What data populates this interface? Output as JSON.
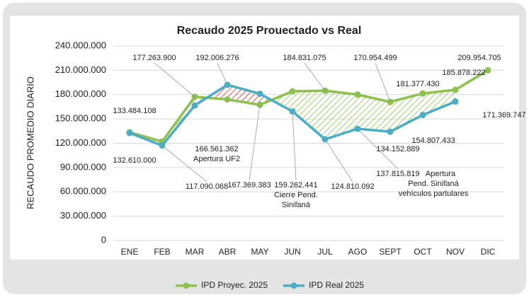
{
  "chart_data": {
    "type": "line",
    "title": "Recaudo 2025 Prouectado vs Real",
    "y_label": "RECAUDO PROMEDIO DIARIO",
    "categories": [
      "ENE",
      "FEB",
      "MAR",
      "ABR",
      "MAY",
      "JUN",
      "JUL",
      "AGO",
      "SEPT",
      "OCT",
      "NOV",
      "DIC"
    ],
    "series": [
      {
        "name": "IPD Proyec. 2025",
        "color": "#8dc04f",
        "values": [
          133484108,
          122000000,
          177263900,
          174000000,
          167369383,
          184000000,
          184831075,
          180000000,
          170954499,
          181377430,
          185878222,
          209954705
        ],
        "value_labels": [
          "133.484.108",
          null,
          "177.263.900",
          null,
          "167.369.383",
          null,
          "184.831.075",
          null,
          "170.954.499",
          "181.377.430",
          "185.878.222",
          "209.954.705"
        ]
      },
      {
        "name": "IPD Real 2025",
        "color": "#4bacc6",
        "values": [
          132610000,
          117090068,
          166561362,
          192006276,
          181000000,
          159262441,
          124810092,
          137815819,
          134152889,
          154807433,
          171369747,
          null
        ],
        "value_labels": [
          "132.610.000",
          "117.090.068",
          "166.561.362",
          "192.006.276",
          null,
          "159.262.441",
          "124.810.092",
          "137.815.819",
          "134.152.889",
          "154.807.433",
          "171.369.747",
          null
        ]
      }
    ],
    "annotations": [
      {
        "series": 1,
        "index": 2,
        "lines": [
          "Apertura UF2"
        ]
      },
      {
        "series": 1,
        "index": 5,
        "lines": [
          "Cierre Pend.",
          "Sinifaná"
        ]
      },
      {
        "series": 1,
        "index": 7,
        "lines": [
          "Apertura",
          "Pend. Sinifaná",
          "vehículos partulares"
        ]
      }
    ],
    "ylim": [
      0,
      240000000
    ],
    "yticks": [
      0,
      {
        "value": 30000000,
        "label": "30.000.000"
      },
      {
        "value": 60000000,
        "label": "60.000.000"
      },
      {
        "value": 90000000,
        "label": "90.000.000"
      },
      {
        "value": 120000000,
        "label": "120.000.000"
      },
      {
        "value": 150000000,
        "label": "150.000.000"
      },
      {
        "value": 180000000,
        "label": "180.000.000"
      },
      {
        "value": 210000000,
        "label": "210.000.000"
      },
      {
        "value": 240000000,
        "label": "240.000.000"
      }
    ],
    "grid": true,
    "legend": "bottom"
  }
}
